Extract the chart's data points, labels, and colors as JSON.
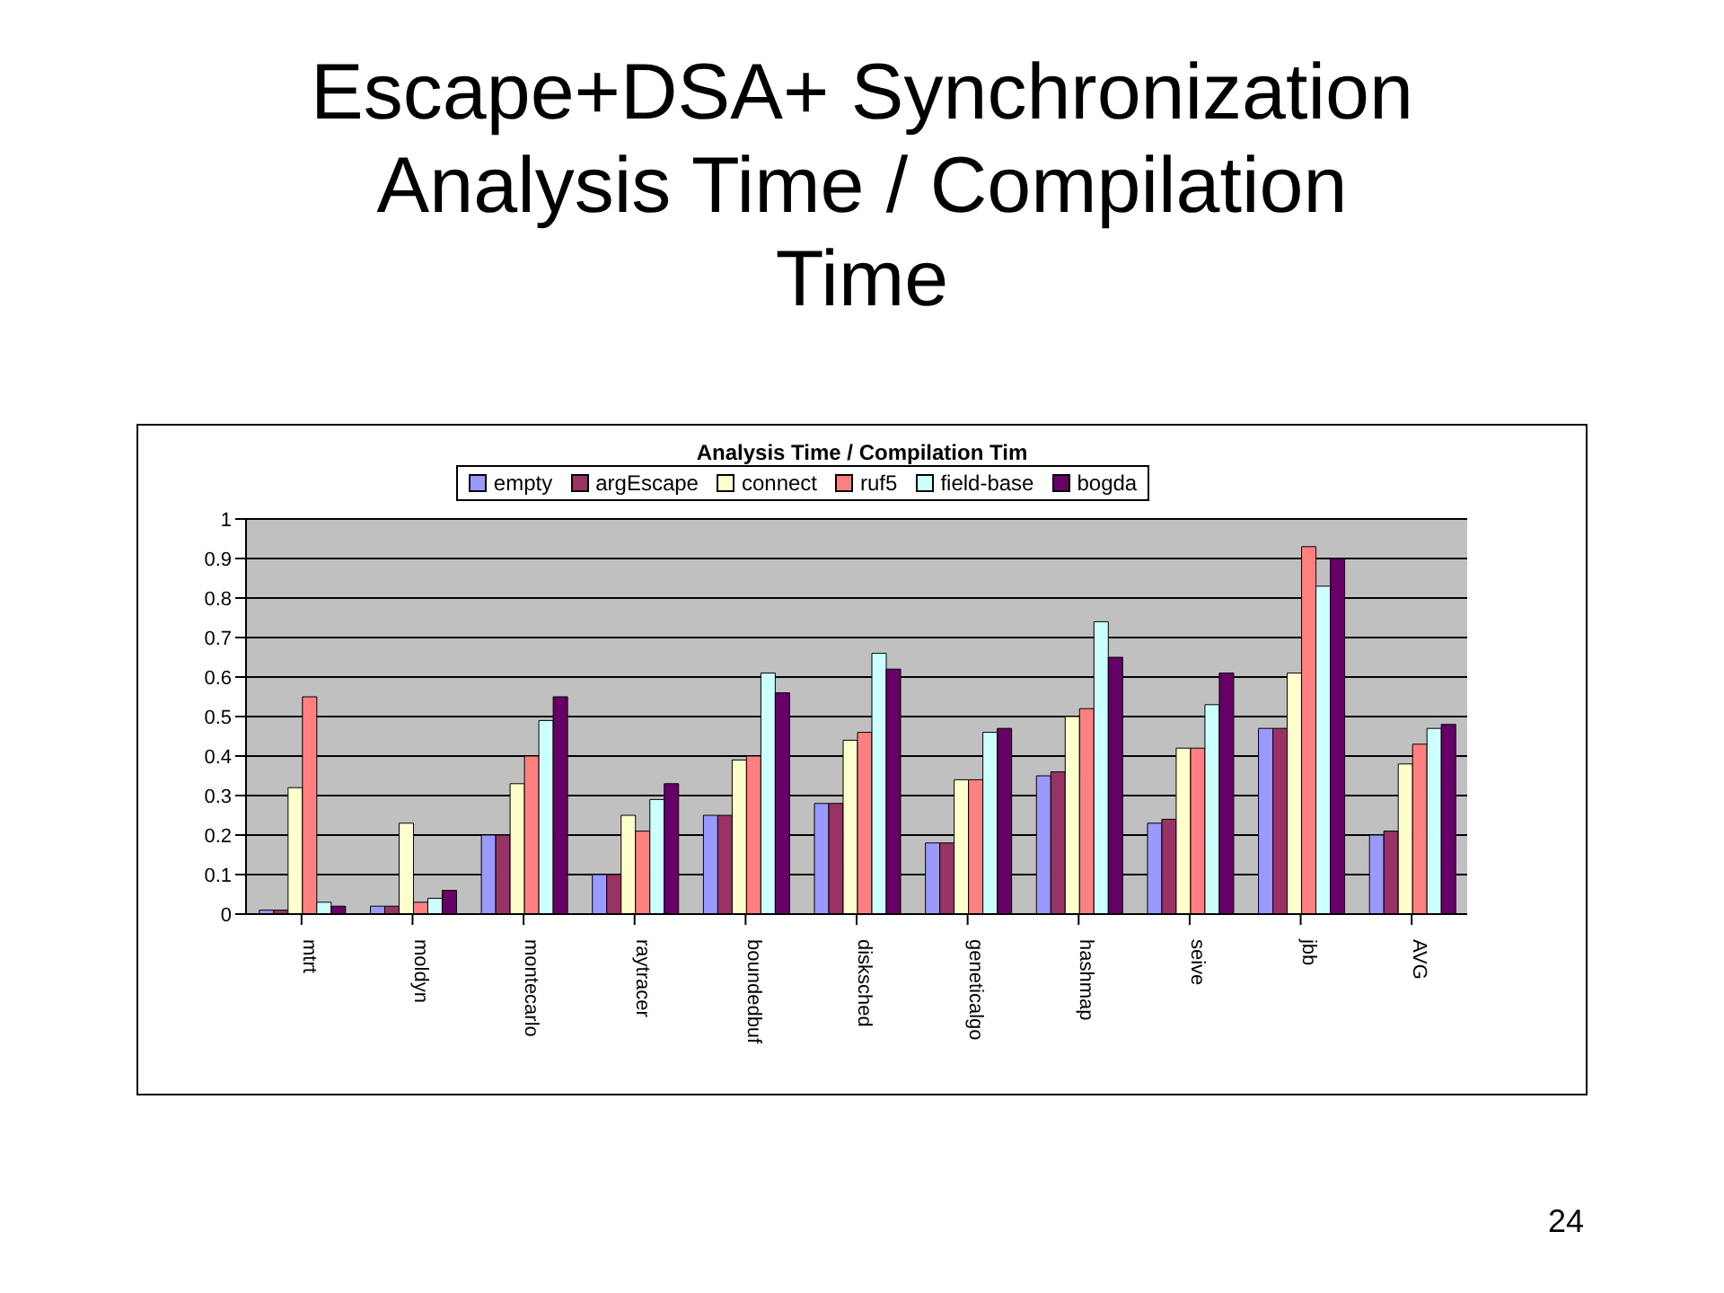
{
  "chart_data": {
    "type": "bar",
    "title": "Escape+DSA+ Synchronization Analysis Time / Compilation Time",
    "subtitle": "Analysis Time / Compilation Tim",
    "annotations": [
      "24"
    ],
    "categories": [
      "mtrt",
      "moldyn",
      "montecarlo",
      "raytracer",
      "boundedbuf",
      "disksched",
      "geneticalgo",
      "hashmap",
      "seive",
      "jbb",
      "AVG"
    ],
    "series": [
      {
        "name": "empty",
        "color": "#9999ff",
        "values": [
          0.01,
          0.02,
          0.2,
          0.1,
          0.25,
          0.28,
          0.18,
          0.35,
          0.23,
          0.47,
          0.2
        ]
      },
      {
        "name": "argEscape",
        "color": "#993366",
        "values": [
          0.01,
          0.02,
          0.2,
          0.1,
          0.25,
          0.28,
          0.18,
          0.36,
          0.24,
          0.47,
          0.21
        ]
      },
      {
        "name": "connect",
        "color": "#ffffcc",
        "values": [
          0.32,
          0.23,
          0.33,
          0.25,
          0.39,
          0.44,
          0.34,
          0.5,
          0.42,
          0.61,
          0.38
        ]
      },
      {
        "name": "ruf5",
        "color": "#ff8080",
        "values": [
          0.55,
          0.03,
          0.4,
          0.21,
          0.4,
          0.46,
          0.34,
          0.52,
          0.42,
          0.93,
          0.43
        ]
      },
      {
        "name": "field-base",
        "color": "#ccffff",
        "values": [
          0.03,
          0.04,
          0.49,
          0.29,
          0.61,
          0.66,
          0.46,
          0.74,
          0.53,
          0.83,
          0.47
        ]
      },
      {
        "name": "bogda",
        "color": "#660066",
        "values": [
          0.02,
          0.06,
          0.55,
          0.33,
          0.56,
          0.62,
          0.47,
          0.65,
          0.61,
          0.9,
          0.48
        ]
      }
    ],
    "ylim": [
      0,
      1
    ],
    "yticks": [
      0,
      0.1,
      0.2,
      0.3,
      0.4,
      0.5,
      0.6,
      0.7,
      0.8,
      0.9,
      1
    ],
    "grid": "y",
    "legend": "top"
  }
}
